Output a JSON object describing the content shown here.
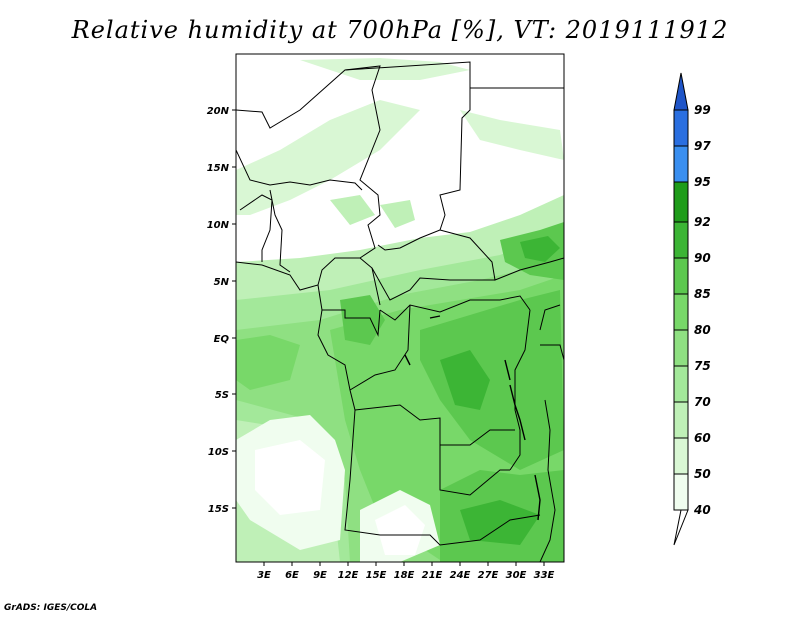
{
  "title": "Relative humidity at 700hPa [%], VT: 2019111912",
  "footer": "GrADS: IGES/COLA",
  "colors": {
    "c40": "#f0fdef",
    "c50": "#d9f7d4",
    "c60": "#bff0b7",
    "c70": "#a3e89a",
    "c75": "#8fe082",
    "c80": "#78d869",
    "c85": "#5cc84f",
    "c90": "#3cb535",
    "c92": "#1f9c1a",
    "c95": "#3a8ff0",
    "c97": "#2a6fe0",
    "c99": "#1f55c8",
    "border": "#000000"
  },
  "axes": {
    "lat_labels": [
      "20N",
      "15N",
      "10N",
      "5N",
      "EQ",
      "5S",
      "10S",
      "15S"
    ],
    "lon_labels": [
      "3E",
      "6E",
      "9E",
      "12E",
      "15E",
      "18E",
      "21E",
      "24E",
      "27E",
      "30E",
      "33E"
    ]
  },
  "colorbar": {
    "labels": [
      "40",
      "50",
      "60",
      "70",
      "75",
      "80",
      "85",
      "90",
      "92",
      "95",
      "97",
      "99"
    ]
  }
}
